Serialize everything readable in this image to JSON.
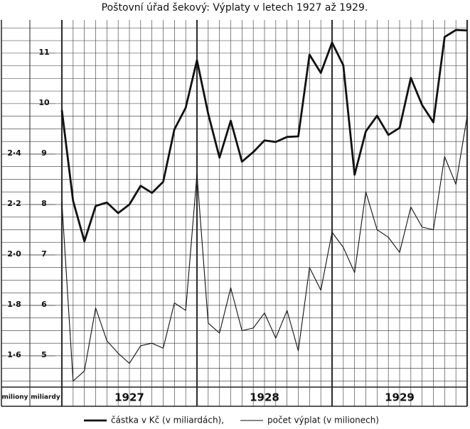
{
  "chart_data": {
    "type": "line",
    "title": "Poštovní úřad šekový: Výplaty v letech 1927 až 1929.",
    "categories": [
      null,
      null,
      null,
      null,
      null,
      null,
      null,
      null,
      null,
      null,
      null,
      null,
      null,
      null,
      null,
      null,
      null,
      null,
      null,
      null,
      null,
      null,
      null,
      null,
      null,
      null,
      null,
      null,
      null,
      null,
      null,
      null,
      null,
      null,
      null,
      null,
      null
    ],
    "years": [
      "1927",
      "1928",
      "1929"
    ],
    "ylabel": "miliardy",
    "y2label": "miliony",
    "ylim": [
      4.38,
      11.66
    ],
    "yticks": [
      5,
      6,
      7,
      8,
      9,
      10,
      11
    ],
    "y2lim": [
      1.476,
      2.932
    ],
    "y2ticks": [
      {
        "value": 1.6,
        "label": "1·6"
      },
      {
        "value": 1.8,
        "label": "1·8"
      },
      {
        "value": 2.0,
        "label": "2·0"
      },
      {
        "value": 2.2,
        "label": "2·2"
      },
      {
        "value": 2.4,
        "label": "2·4"
      }
    ],
    "grid": true,
    "series": [
      {
        "name": "částka v Kč (v miliardách),",
        "color": "#111111",
        "values": [
          9.87,
          8.07,
          7.27,
          7.97,
          8.04,
          7.83,
          8.0,
          8.37,
          8.23,
          8.45,
          9.49,
          9.92,
          10.86,
          9.8,
          8.93,
          9.66,
          8.85,
          9.04,
          9.27,
          9.24,
          9.34,
          9.35,
          10.97,
          10.61,
          11.21,
          10.76,
          8.59,
          9.45,
          9.76,
          9.38,
          9.52,
          10.51,
          9.97,
          9.63,
          11.32,
          11.46,
          11.45
        ]
      },
      {
        "name": "počet výplat  (v milionech)",
        "color": "#111111",
        "axis": "y2",
        "values": [
          2.21,
          1.5,
          1.54,
          1.79,
          1.66,
          1.61,
          1.57,
          1.64,
          1.65,
          1.63,
          1.81,
          1.78,
          2.32,
          1.73,
          1.69,
          1.87,
          1.7,
          1.71,
          1.77,
          1.67,
          1.78,
          1.62,
          1.95,
          1.86,
          2.09,
          2.03,
          1.93,
          2.25,
          2.1,
          2.07,
          2.01,
          2.19,
          2.11,
          2.1,
          2.39,
          2.28,
          2.55
        ]
      }
    ]
  }
}
